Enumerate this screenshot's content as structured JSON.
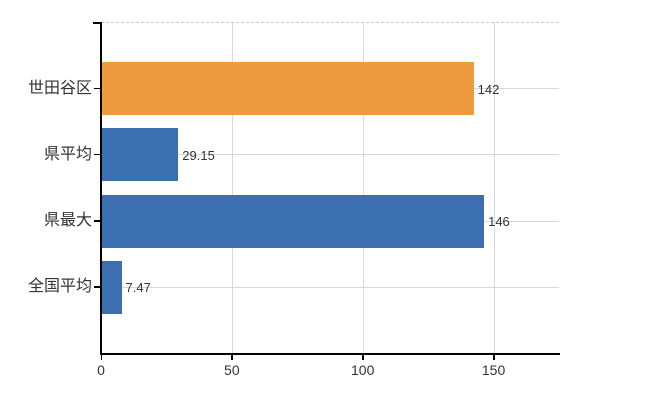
{
  "chart_data": {
    "type": "bar",
    "orientation": "horizontal",
    "title": "",
    "xlabel": "",
    "ylabel": "",
    "categories": [
      "世田谷区",
      "県平均",
      "県最大",
      "全国平均"
    ],
    "values": [
      142,
      29.15,
      146,
      7.47
    ],
    "value_labels": [
      "142",
      "29.15",
      "146",
      "7.47"
    ],
    "series_colors": [
      "#ED9B3E",
      "#3B6FB1",
      "#3B6FB1",
      "#3B6FB1"
    ],
    "xlim": [
      0,
      175
    ],
    "x_ticks": [
      0,
      50,
      100,
      150
    ],
    "x_tick_labels": [
      "0",
      "50",
      "100",
      "150"
    ],
    "grid": true,
    "legend": false
  },
  "style": {
    "axis_color": "#000000",
    "grid_color_vertical": "#d9d9d9",
    "grid_color_horizontal": "#d4dad2",
    "top_border_color": "#c9c9c9",
    "text_color": "#333333",
    "background": "#ffffff"
  }
}
